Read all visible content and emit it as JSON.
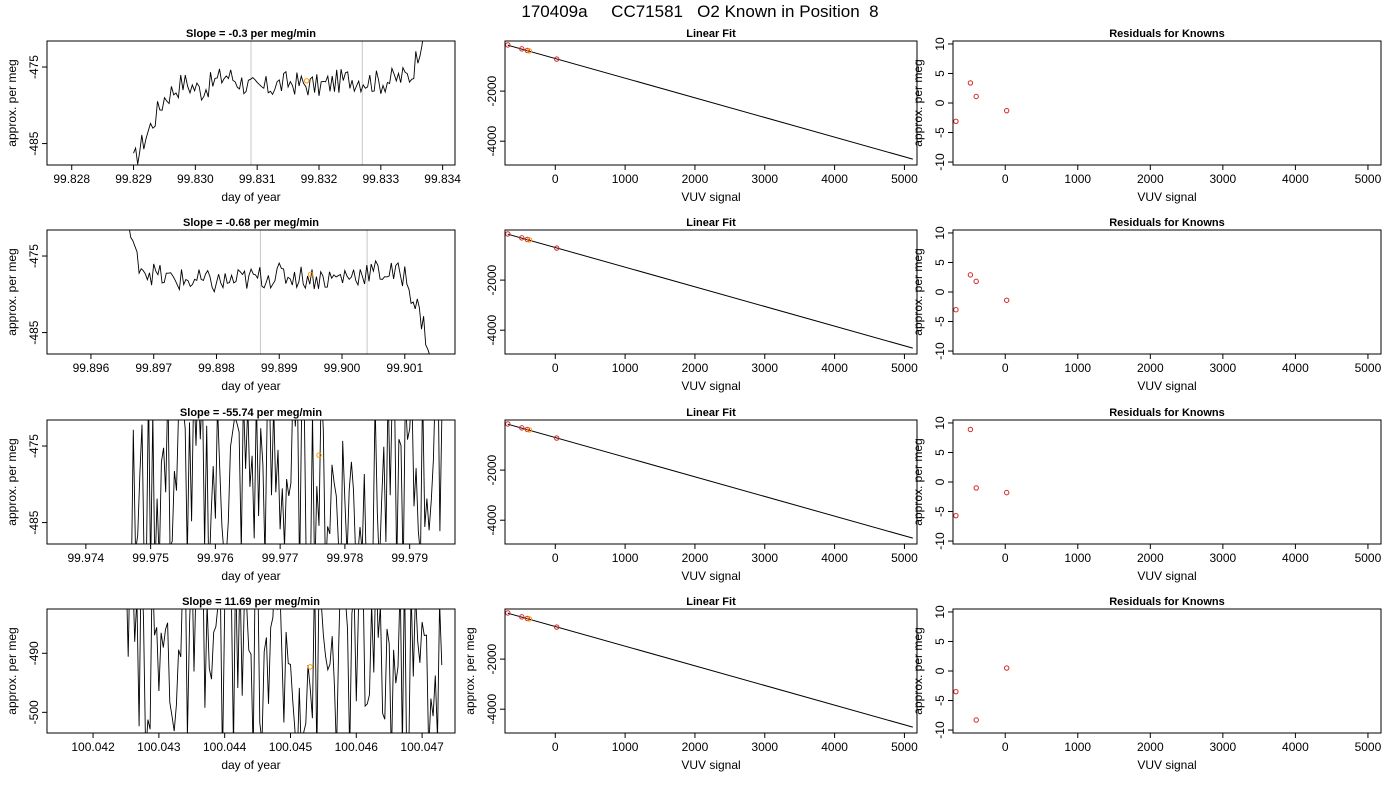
{
  "figure": {
    "title": "170409a     CC71581   O2 Known in Position  8",
    "colors": {
      "trace": "#000000",
      "guide": "#c8c8c8",
      "point": "#d62728",
      "highlight": "#ff9900",
      "axis": "#000000"
    }
  },
  "chart_data": [
    {
      "type": "line",
      "row": 0,
      "col": 0,
      "title": "Slope =  -0.3  per meg/min",
      "xlabel": "day of year",
      "ylabel": "approx. per meg",
      "xlim": [
        99.8276,
        99.8342
      ],
      "ylim": [
        -487.8,
        -471.6
      ],
      "xticks": [
        99.828,
        99.829,
        99.83,
        99.831,
        99.832,
        99.833,
        99.834
      ],
      "xtick_labels": [
        "99.828",
        "99.829",
        "99.830",
        "99.831",
        "99.832",
        "99.833",
        "99.834"
      ],
      "yticks": [
        -475,
        -485
      ],
      "ytick_labels": [
        "-475",
        "-485"
      ],
      "vlines": [
        99.8309,
        99.8327
      ],
      "trace_x": [
        99.829,
        99.8292,
        99.8295,
        99.8298,
        99.8301,
        99.8305,
        99.831,
        99.8315,
        99.832,
        99.8325,
        99.833,
        99.8335,
        99.8337
      ],
      "trace_y": [
        -487.5,
        -484.0,
        -479.0,
        -477.0,
        -478.0,
        -476.0,
        -478.0,
        -477.0,
        -477.5,
        -476.5,
        -477.0,
        -476.0,
        -470.0
      ],
      "trace_noise": 1.6,
      "highlight_points": [
        [
          99.8318,
          -476.8
        ]
      ]
    },
    {
      "type": "scatter",
      "row": 0,
      "col": 1,
      "title": "Linear Fit",
      "xlabel": "VUV signal",
      "ylabel": "",
      "xlim": [
        -720,
        5180
      ],
      "ylim": [
        -4950,
        0
      ],
      "xticks": [
        0,
        1000,
        2000,
        3000,
        4000,
        5000
      ],
      "xtick_labels": [
        "0",
        "1000",
        "2000",
        "3000",
        "4000",
        "5000"
      ],
      "yticks": [
        -2000,
        -4000
      ],
      "ytick_labels": [
        "-2000",
        "-4000"
      ],
      "fit_line": [
        [
          -680,
          -166
        ],
        [
          5120,
          -4716
        ]
      ],
      "points": [
        [
          -680,
          -158
        ],
        [
          -480,
          -314
        ],
        [
          -400,
          -378
        ],
        [
          20,
          -720
        ]
      ],
      "highlight_points": [
        [
          -370,
          -398
        ]
      ]
    },
    {
      "type": "scatter",
      "row": 0,
      "col": 2,
      "title": "Residuals for Knowns",
      "xlabel": "VUV signal",
      "ylabel": "approx. per meg",
      "xlim": [
        -720,
        5180
      ],
      "ylim": [
        -10.5,
        10.5
      ],
      "xticks": [
        0,
        1000,
        2000,
        3000,
        4000,
        5000
      ],
      "xtick_labels": [
        "0",
        "1000",
        "2000",
        "3000",
        "4000",
        "5000"
      ],
      "yticks": [
        10,
        5,
        0,
        -5,
        -10
      ],
      "ytick_labels": [
        "10",
        "5",
        "0",
        "-5",
        "-10"
      ],
      "points": [
        [
          -680,
          -3.1
        ],
        [
          -480,
          3.4
        ],
        [
          -400,
          1.1
        ],
        [
          20,
          -1.3
        ]
      ]
    },
    {
      "type": "line",
      "row": 1,
      "col": 0,
      "title": "Slope =  -0.68  per meg/min",
      "xlabel": "day of year",
      "ylabel": "approx. per meg",
      "xlim": [
        99.8953,
        99.9018
      ],
      "ylim": [
        -487.8,
        -471.6
      ],
      "xticks": [
        99.896,
        99.897,
        99.898,
        99.899,
        99.9,
        99.901
      ],
      "xtick_labels": [
        "99.896",
        "99.897",
        "99.898",
        "99.899",
        "99.900",
        "99.901"
      ],
      "yticks": [
        -475,
        -485
      ],
      "ytick_labels": [
        "-475",
        "-485"
      ],
      "vlines": [
        99.8987,
        99.9004
      ],
      "trace_x": [
        99.8966,
        99.8967,
        99.8969,
        99.8972,
        99.898,
        99.899,
        99.8998,
        99.9005,
        99.901,
        99.9013,
        99.9014
      ],
      "trace_y": [
        -471.0,
        -475.0,
        -477.0,
        -478.0,
        -478.5,
        -477.5,
        -478.0,
        -477.0,
        -477.5,
        -484.0,
        -488.0
      ],
      "trace_noise": 1.6,
      "highlight_points": [
        [
          99.8995,
          -477.4
        ]
      ]
    },
    {
      "type": "scatter",
      "row": 1,
      "col": 1,
      "title": "Linear Fit",
      "xlabel": "VUV signal",
      "ylabel": "",
      "xlim": [
        -720,
        5180
      ],
      "ylim": [
        -4950,
        0
      ],
      "xticks": [
        0,
        1000,
        2000,
        3000,
        4000,
        5000
      ],
      "xtick_labels": [
        "0",
        "1000",
        "2000",
        "3000",
        "4000",
        "5000"
      ],
      "yticks": [
        -2000,
        -4000
      ],
      "ytick_labels": [
        "-2000",
        "-4000"
      ],
      "fit_line": [
        [
          -680,
          -166
        ],
        [
          5120,
          -4716
        ]
      ],
      "points": [
        [
          -680,
          -158
        ],
        [
          -480,
          -314
        ],
        [
          -400,
          -378
        ],
        [
          20,
          -720
        ]
      ],
      "highlight_points": [
        [
          -370,
          -398
        ]
      ]
    },
    {
      "type": "scatter",
      "row": 1,
      "col": 2,
      "title": "Residuals for Knowns",
      "xlabel": "VUV signal",
      "ylabel": "approx. per meg",
      "xlim": [
        -720,
        5180
      ],
      "ylim": [
        -10.5,
        10.5
      ],
      "xticks": [
        0,
        1000,
        2000,
        3000,
        4000,
        5000
      ],
      "xtick_labels": [
        "0",
        "1000",
        "2000",
        "3000",
        "4000",
        "5000"
      ],
      "yticks": [
        10,
        5,
        0,
        -5,
        -10
      ],
      "ytick_labels": [
        "10",
        "5",
        "0",
        "-5",
        "-10"
      ],
      "points": [
        [
          -680,
          -3.0
        ],
        [
          -480,
          2.9
        ],
        [
          -400,
          1.8
        ],
        [
          20,
          -1.4
        ]
      ]
    },
    {
      "type": "line",
      "row": 2,
      "col": 0,
      "title": "Slope =  -55.74  per meg/min",
      "xlabel": "day of year",
      "ylabel": "approx. per meg",
      "xlim": [
        99.9734,
        99.9797
      ],
      "ylim": [
        -487.8,
        -471.6
      ],
      "xticks": [
        99.974,
        99.975,
        99.976,
        99.977,
        99.978,
        99.979
      ],
      "xtick_labels": [
        "99.974",
        "99.975",
        "99.976",
        "99.977",
        "99.978",
        "99.979"
      ],
      "yticks": [
        -475,
        -485
      ],
      "ytick_labels": [
        "-475",
        "-485"
      ],
      "vlines": [],
      "trace_x": [
        99.9747,
        99.975,
        99.9755,
        99.976,
        99.9765,
        99.977,
        99.9775,
        99.978,
        99.9785,
        99.979,
        99.9794,
        99.9795
      ],
      "trace_y": [
        -486.0,
        -480.0,
        -478.0,
        -480.0,
        -478.0,
        -479.0,
        -479.0,
        -482.0,
        -482.0,
        -479.0,
        -477.0,
        -470.0
      ],
      "trace_noise": 14,
      "highlight_points": [
        [
          99.9776,
          -476.2
        ]
      ]
    },
    {
      "type": "scatter",
      "row": 2,
      "col": 1,
      "title": "Linear Fit",
      "xlabel": "VUV signal",
      "ylabel": "",
      "xlim": [
        -720,
        5180
      ],
      "ylim": [
        -4950,
        0
      ],
      "xticks": [
        0,
        1000,
        2000,
        3000,
        4000,
        5000
      ],
      "xtick_labels": [
        "0",
        "1000",
        "2000",
        "3000",
        "4000",
        "5000"
      ],
      "yticks": [
        -2000,
        -4000
      ],
      "ytick_labels": [
        "-2000",
        "-4000"
      ],
      "fit_line": [
        [
          -680,
          -166
        ],
        [
          5120,
          -4716
        ]
      ],
      "points": [
        [
          -680,
          -158
        ],
        [
          -480,
          -314
        ],
        [
          -400,
          -378
        ],
        [
          20,
          -720
        ]
      ],
      "highlight_points": [
        [
          -370,
          -398
        ]
      ]
    },
    {
      "type": "scatter",
      "row": 2,
      "col": 2,
      "title": "Residuals for Knowns",
      "xlabel": "VUV signal",
      "ylabel": "approx. per meg",
      "xlim": [
        -720,
        5180
      ],
      "ylim": [
        -10.5,
        10.5
      ],
      "xticks": [
        0,
        1000,
        2000,
        3000,
        4000,
        5000
      ],
      "xtick_labels": [
        "0",
        "1000",
        "2000",
        "3000",
        "4000",
        "5000"
      ],
      "yticks": [
        10,
        5,
        0,
        -5,
        -10
      ],
      "ytick_labels": [
        "10",
        "5",
        "0",
        "-5",
        "-10"
      ],
      "points": [
        [
          -680,
          -5.7
        ],
        [
          -480,
          8.9
        ],
        [
          -400,
          -1.0
        ],
        [
          20,
          -1.8
        ]
      ]
    },
    {
      "type": "line",
      "row": 3,
      "col": 0,
      "title": "Slope =  11.69  per meg/min",
      "xlabel": "day of year",
      "ylabel": "approx. per meg",
      "xlim": [
        100.0413,
        100.0475
      ],
      "ylim": [
        -503.5,
        -482.5
      ],
      "xticks": [
        100.042,
        100.043,
        100.044,
        100.045,
        100.046,
        100.047
      ],
      "xtick_labels": [
        "100.042",
        "100.043",
        "100.044",
        "100.045",
        "100.046",
        "100.047"
      ],
      "yticks": [
        -490,
        -500
      ],
      "ytick_labels": [
        "-490",
        "-500"
      ],
      "vlines": [],
      "trace_x": [
        100.0425,
        100.043,
        100.0435,
        100.044,
        100.0445,
        100.045,
        100.0455,
        100.046,
        100.0465,
        100.047,
        100.0473
      ],
      "trace_y": [
        -489.0,
        -490.0,
        -488.0,
        -491.0,
        -489.0,
        -492.0,
        -490.0,
        -489.0,
        -491.0,
        -490.0,
        -492.0
      ],
      "trace_noise": 18,
      "highlight_points": [
        [
          100.0453,
          -492.3
        ]
      ]
    },
    {
      "type": "scatter",
      "row": 3,
      "col": 1,
      "title": "Linear Fit",
      "xlabel": "VUV signal",
      "ylabel": "approx. per meg",
      "xlim": [
        -720,
        5180
      ],
      "ylim": [
        -4950,
        0
      ],
      "xticks": [
        0,
        1000,
        2000,
        3000,
        4000,
        5000
      ],
      "xtick_labels": [
        "0",
        "1000",
        "2000",
        "3000",
        "4000",
        "5000"
      ],
      "yticks": [
        -2000,
        -4000
      ],
      "ytick_labels": [
        "-2000",
        "-4000"
      ],
      "fit_line": [
        [
          -680,
          -166
        ],
        [
          5120,
          -4716
        ]
      ],
      "points": [
        [
          -680,
          -158
        ],
        [
          -480,
          -314
        ],
        [
          -400,
          -378
        ],
        [
          20,
          -720
        ]
      ],
      "highlight_points": [
        [
          -370,
          -398
        ]
      ]
    },
    {
      "type": "scatter",
      "row": 3,
      "col": 2,
      "title": "Residuals for Knowns",
      "xlabel": "VUV signal",
      "ylabel": "approx. per meg",
      "xlim": [
        -720,
        5180
      ],
      "ylim": [
        -10.5,
        10.5
      ],
      "xticks": [
        0,
        1000,
        2000,
        3000,
        4000,
        5000
      ],
      "xtick_labels": [
        "0",
        "1000",
        "2000",
        "3000",
        "4000",
        "5000"
      ],
      "yticks": [
        10,
        5,
        0,
        -5,
        -10
      ],
      "ytick_labels": [
        "10",
        "5",
        "0",
        "-5",
        "-10"
      ],
      "points": [
        [
          -680,
          -3.5
        ],
        [
          -400,
          -8.3
        ],
        [
          20,
          0.5
        ]
      ]
    }
  ]
}
